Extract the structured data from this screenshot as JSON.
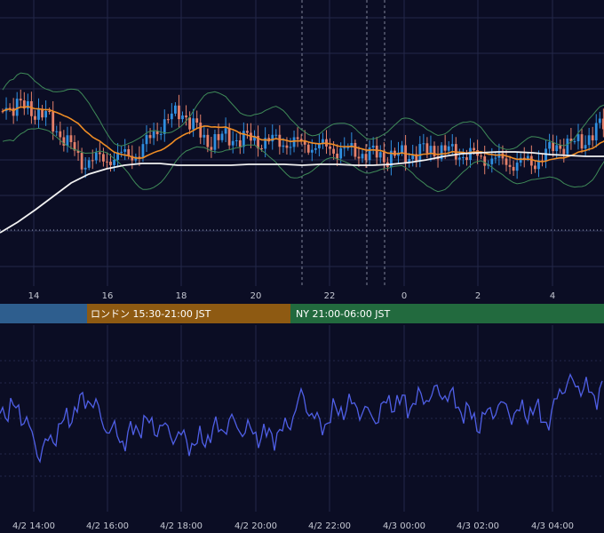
{
  "colors": {
    "background": "#0b0d24",
    "grid": "#23284a",
    "up_candle": "#2f8fe0",
    "down_candle": "#e4806a",
    "bollinger": "#3f8a58",
    "ma_short": "#ef8d25",
    "ma_long": "#f2f2f2",
    "rsi_line": "#4f5fe6",
    "session_tokyo": "#2e5e8e",
    "session_london": "#8e5a12",
    "session_ny": "#226a3e"
  },
  "sessions": [
    {
      "id": "tokyo",
      "label": ""
    },
    {
      "id": "london",
      "label": "ロンドン 15:30-21:00 JST"
    },
    {
      "id": "ny",
      "label": "NY 21:00-06:00 JST"
    }
  ],
  "chart_data": [
    {
      "type": "candlestick",
      "title": "",
      "x_tick_labels": [
        "14",
        "16",
        "18",
        "20",
        "22",
        "0",
        "2",
        "4"
      ],
      "overlays": [
        "bollinger_bands",
        "moving_average_short",
        "moving_average_long"
      ],
      "grid": true,
      "vertical_markers": [
        "21:00",
        "23:00",
        "23:30"
      ]
    },
    {
      "type": "line",
      "title": "",
      "series": [
        {
          "indicator": "oscillator"
        }
      ],
      "x_tick_labels": [
        "4/2 14:00",
        "4/2 16:00",
        "4/2 18:00",
        "4/2 20:00",
        "4/2 22:00",
        "4/3 00:00",
        "4/3 02:00",
        "4/3 04:00"
      ],
      "grid": true
    }
  ]
}
